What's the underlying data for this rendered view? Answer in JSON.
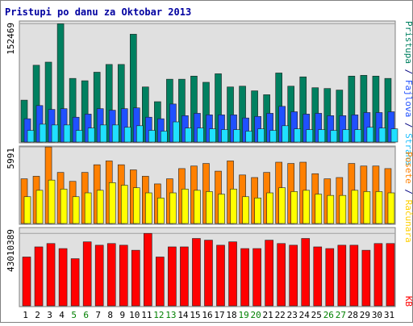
{
  "chart_data": {
    "type": "bar",
    "title": "Pristupi po danu za Oktobar 2013",
    "categories": [
      "1",
      "2",
      "3",
      "4",
      "5",
      "6",
      "7",
      "8",
      "9",
      "10",
      "11",
      "12",
      "13",
      "14",
      "15",
      "16",
      "17",
      "18",
      "19",
      "20",
      "21",
      "22",
      "23",
      "24",
      "25",
      "26",
      "27",
      "28",
      "29",
      "30",
      "31"
    ],
    "weekend_days": [
      "5",
      "6",
      "12",
      "13",
      "19",
      "20",
      "26",
      "27"
    ],
    "colors": {
      "title": "#0000a0",
      "frame": "#808080",
      "background": "#e0e0e0",
      "weekday_label": "#000000",
      "weekend_label": "#008000",
      "pristupa": "#008060",
      "fajlova": "#2050ff",
      "strana": "#20e0ff",
      "posete": "#ff8000",
      "racunara": "#ffff00",
      "kb": "#ff0000"
    },
    "panels": [
      {
        "y_tick": "152469",
        "right_labels": [
          {
            "text": "Pristupa",
            "color": "#008060"
          },
          {
            "text": " / ",
            "color": "#000080"
          },
          {
            "text": "Fajlova",
            "color": "#2050ff"
          },
          {
            "text": " / ",
            "color": "#000080"
          },
          {
            "text": "Strana",
            "color": "#20c0ff"
          }
        ],
        "ylim": [
          0,
          155000
        ],
        "series": [
          {
            "name": "Pristupa",
            "values": [
              54000,
              99000,
              103000,
              152469,
              82000,
              79000,
              90000,
              100000,
              100000,
              139000,
              71000,
              52000,
              81000,
              81000,
              85000,
              77000,
              88000,
              71000,
              72000,
              66000,
              61000,
              89000,
              72000,
              84000,
              70000,
              69000,
              67000,
              85000,
              86000,
              85000,
              82000
            ]
          },
          {
            "name": "Fajlova",
            "values": [
              30000,
              47000,
              42000,
              43000,
              32000,
              36000,
              43000,
              41000,
              43000,
              44000,
              32000,
              30000,
              49000,
              34000,
              37000,
              35000,
              35000,
              35000,
              31000,
              33000,
              37000,
              46000,
              39000,
              36000,
              37000,
              34000,
              34000,
              35000,
              38000,
              38000,
              39000
            ]
          },
          {
            "name": "Strana",
            "values": [
              15000,
              23000,
              22000,
              22000,
              15000,
              18000,
              22000,
              22000,
              19000,
              21000,
              15000,
              14000,
              26000,
              18000,
              18000,
              17000,
              16000,
              16000,
              14000,
              17000,
              15000,
              21000,
              17000,
              16000,
              16000,
              15000,
              16000,
              16000,
              19000,
              18000,
              17000
            ]
          }
        ]
      },
      {
        "y_tick": "5991",
        "right_labels": [
          {
            "text": "Posete",
            "color": "#ff8000"
          },
          {
            "text": " / ",
            "color": "#000080"
          },
          {
            "text": "Računara",
            "color": "#ffd000"
          }
        ],
        "ylim": [
          0,
          6000
        ],
        "series": [
          {
            "name": "Posete",
            "values": [
              3500,
              3700,
              5991,
              4000,
              3300,
              4000,
              4600,
              4900,
              4600,
              4200,
              3700,
              3100,
              3500,
              4300,
              4500,
              4700,
              4100,
              4900,
              3800,
              3600,
              4000,
              4800,
              4700,
              4800,
              3900,
              3500,
              3600,
              4700,
              4500,
              4500,
              4300
            ]
          },
          {
            "name": "Računara",
            "values": [
              2100,
              2600,
              3400,
              2700,
              2100,
              2400,
              2600,
              3200,
              3000,
              2800,
              2400,
              2000,
              2400,
              2700,
              2600,
              2500,
              2300,
              2700,
              2100,
              2000,
              2400,
              2800,
              2500,
              2600,
              2300,
              2200,
              2200,
              2600,
              2500,
              2500,
              2400
            ]
          }
        ]
      },
      {
        "y_tick": "43010389",
        "right_labels": [
          {
            "text": "KB",
            "color": "#ff0000"
          }
        ],
        "ylim": [
          0,
          46000000
        ],
        "series": [
          {
            "name": "KB",
            "values": [
              29000000,
              35000000,
              37000000,
              34000000,
              28000000,
              38000000,
              36000000,
              37000000,
              36000000,
              33000000,
              43010389,
              29000000,
              35000000,
              35000000,
              40000000,
              39000000,
              36000000,
              38000000,
              34000000,
              34000000,
              39000000,
              37000000,
              36000000,
              40000000,
              35000000,
              34000000,
              36000000,
              36000000,
              33000000,
              37000000,
              37000000
            ]
          }
        ]
      }
    ]
  }
}
